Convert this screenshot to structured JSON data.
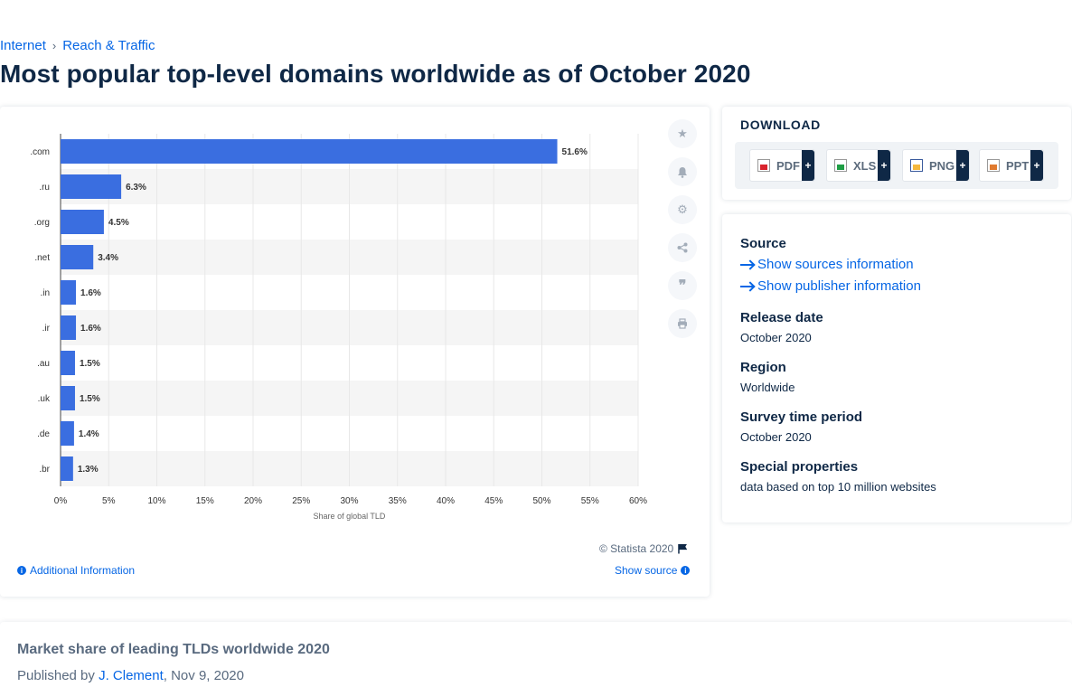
{
  "breadcrumb": {
    "items": [
      "Internet",
      "Reach & Traffic"
    ],
    "separator": "›"
  },
  "page": {
    "title": "Most popular top-level domains worldwide as of October 2020"
  },
  "colors": {
    "bar": "#3a6ee0",
    "accent": "#0666e5",
    "text": "#0f2846",
    "band": "#f5f5f5"
  },
  "chart_data": {
    "type": "bar",
    "orientation": "horizontal",
    "categories": [
      ".com",
      ".ru",
      ".org",
      ".net",
      ".in",
      ".ir",
      ".au",
      ".uk",
      ".de",
      ".br"
    ],
    "values": [
      51.6,
      6.3,
      4.5,
      3.4,
      1.6,
      1.6,
      1.5,
      1.5,
      1.4,
      1.3
    ],
    "data_labels": [
      "51.6%",
      "6.3%",
      "4.5%",
      "3.4%",
      "1.6%",
      "1.6%",
      "1.5%",
      "1.5%",
      "1.4%",
      "1.3%"
    ],
    "xlim": [
      0,
      60
    ],
    "xticks": [
      0,
      5,
      10,
      15,
      20,
      25,
      30,
      35,
      40,
      45,
      50,
      55,
      60
    ],
    "xtick_labels": [
      "0%",
      "5%",
      "10%",
      "15%",
      "20%",
      "25%",
      "30%",
      "35%",
      "40%",
      "45%",
      "50%",
      "55%",
      "60%"
    ],
    "xlabel": "Share of global TLD",
    "ylabel": "",
    "grid": true,
    "legend": "none"
  },
  "chart_footer": {
    "copyright": "© Statista 2020",
    "additional_info": "Additional Information",
    "show_source": "Show source"
  },
  "tools": [
    "star-icon",
    "bell-icon",
    "gear-icon",
    "share-icon",
    "quote-icon",
    "print-icon"
  ],
  "download": {
    "title": "DOWNLOAD",
    "buttons": [
      {
        "label": "PDF",
        "icon": "pdf-file-icon",
        "plus": "+"
      },
      {
        "label": "XLS",
        "icon": "xls-file-icon",
        "plus": "+"
      },
      {
        "label": "PNG",
        "icon": "png-file-icon",
        "plus": "+"
      },
      {
        "label": "PPT",
        "icon": "ppt-file-icon",
        "plus": "+"
      }
    ]
  },
  "info": {
    "source_label": "Source",
    "show_sources": "Show sources information",
    "show_publisher": "Show publisher information",
    "release_date_label": "Release date",
    "release_date": "October 2020",
    "region_label": "Region",
    "region": "Worldwide",
    "survey_period_label": "Survey time period",
    "survey_period": "October 2020",
    "special_label": "Special properties",
    "special": "data based on top 10 million websites"
  },
  "bottom": {
    "title": "Market share of leading TLDs worldwide 2020",
    "published_prefix": "Published by ",
    "author": "J. Clement",
    "date": ", Nov 9, 2020"
  }
}
